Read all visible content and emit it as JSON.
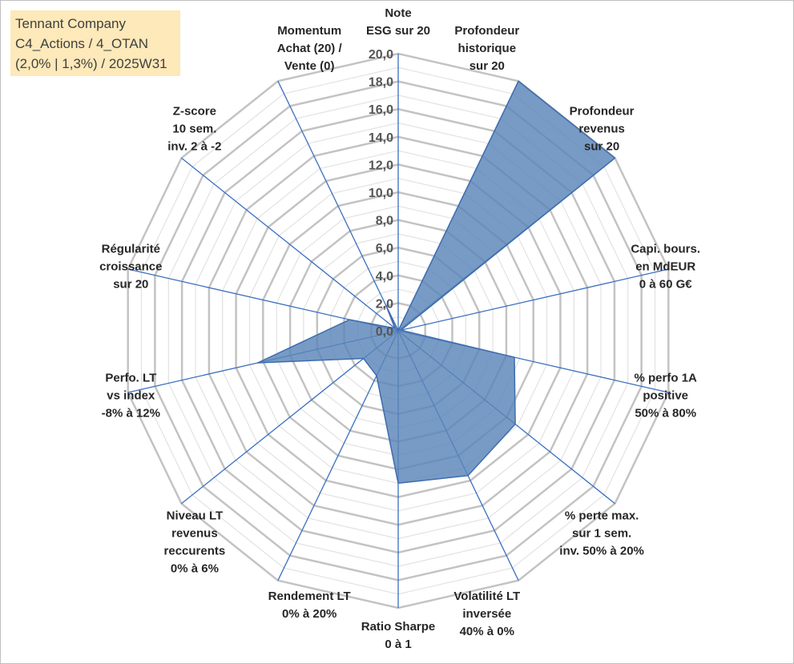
{
  "title": {
    "lines": [
      "Tennant Company",
      "C4_Actions / 4_OTAN",
      "(2,0% | 1,3%) / 2025W31"
    ]
  },
  "colors": {
    "grid": "#c3c3c3",
    "spoke": "#3a6fc0",
    "fill": "#5a85b8",
    "outline": "#3e6dae",
    "title_bg": "#fde9b9"
  },
  "chart_data": {
    "type": "radar",
    "rlim": [
      0,
      20
    ],
    "ticks": [
      "0,0",
      "2,0",
      "4,0",
      "6,0",
      "8,0",
      "10,0",
      "12,0",
      "14,0",
      "16,0",
      "18,0",
      "20,0"
    ],
    "grid": true,
    "axes": [
      {
        "label": [
          "Note",
          "ESG sur 20"
        ]
      },
      {
        "label": [
          "Profondeur",
          "historique",
          "sur 20"
        ]
      },
      {
        "label": [
          "Profondeur",
          "revenus",
          "sur 20"
        ]
      },
      {
        "label": [
          "Capi. bours.",
          "en MdEUR",
          "0 à 60 G€"
        ]
      },
      {
        "label": [
          "% perfo 1A",
          "positive",
          "50% à 80%"
        ]
      },
      {
        "label": [
          "% perte max.",
          "sur 1 sem.",
          "inv. 50% à 20%"
        ]
      },
      {
        "label": [
          "Volatilité LT",
          "inversée",
          "40% à 0%"
        ]
      },
      {
        "label": [
          "Ratio Sharpe",
          "0 à 1"
        ]
      },
      {
        "label": [
          "Rendement LT",
          "0% à 20%"
        ]
      },
      {
        "label": [
          "Niveau LT",
          "revenus",
          "reccurents",
          "0% à 6%"
        ]
      },
      {
        "label": [
          "Perfo. LT",
          "vs index",
          "-8% à 12%"
        ]
      },
      {
        "label": [
          "Régularité",
          "croissance",
          "sur 20"
        ]
      },
      {
        "label": [
          "Z-score",
          "10 sem.",
          "inv. 2 à -2"
        ]
      },
      {
        "label": [
          "Momentum",
          "Achat (20) /",
          "Vente (0)"
        ]
      }
    ],
    "values": [
      0,
      20,
      20,
      0.2,
      8.6,
      10.8,
      11.6,
      11.0,
      3.6,
      3.2,
      10.4,
      3.6,
      0.3,
      2.0
    ]
  }
}
